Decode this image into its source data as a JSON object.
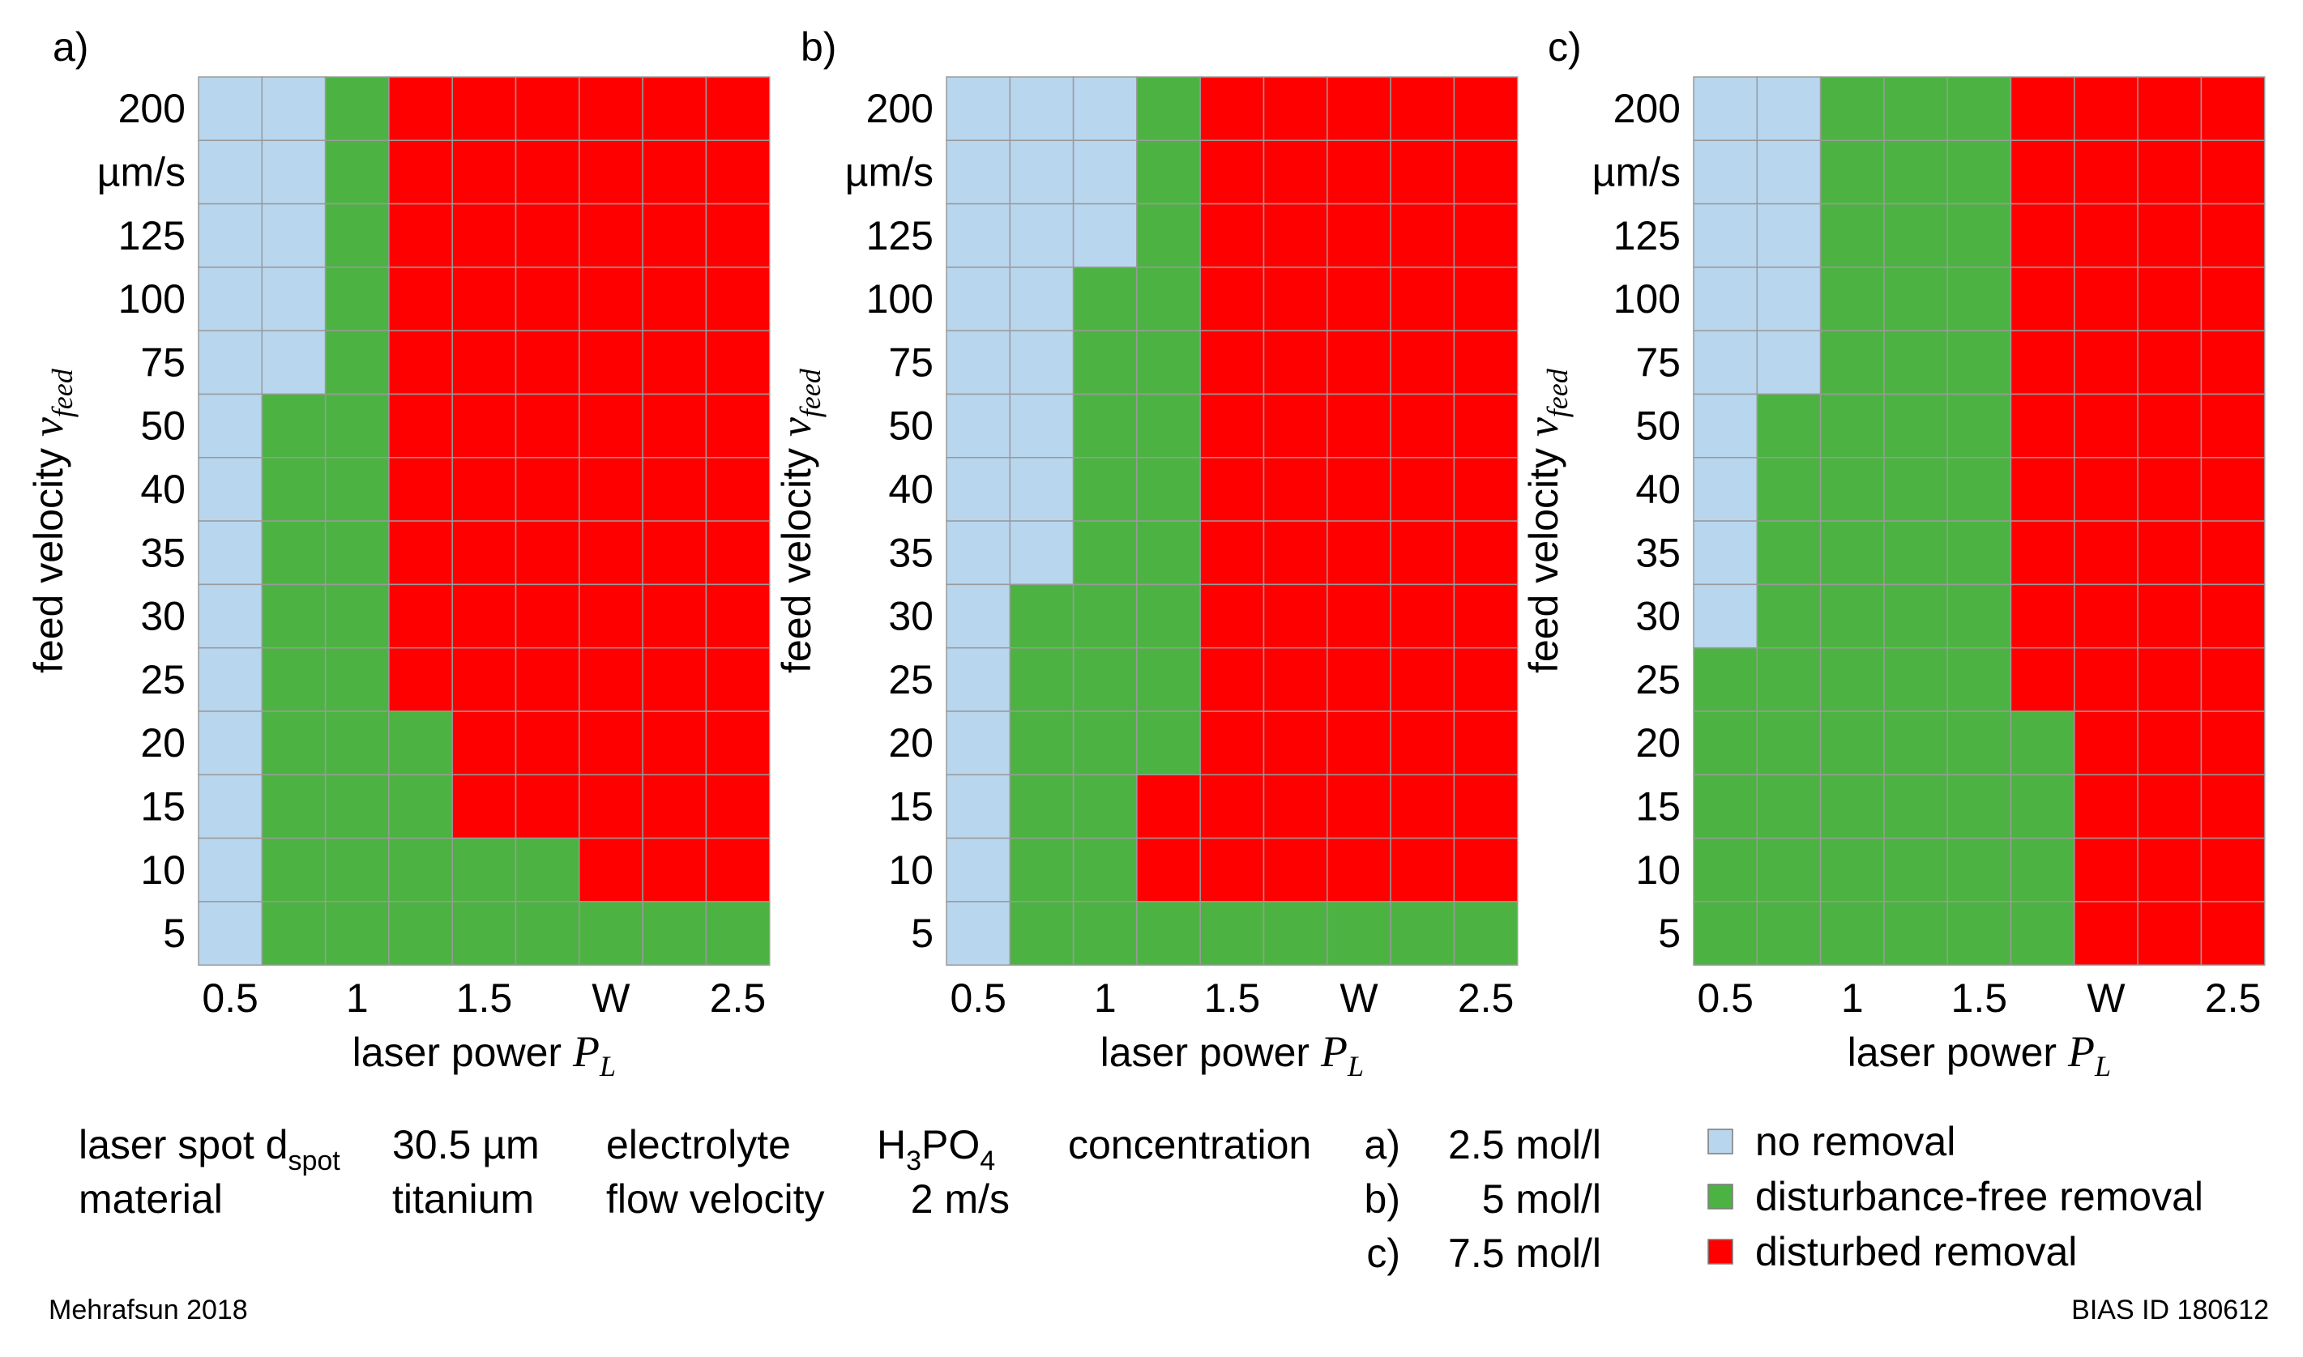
{
  "chart_data": [
    {
      "type": "heatmap",
      "panel_label": "a)",
      "xlabel": "laser power",
      "xlabel_symbol": "P",
      "xlabel_sub": "L",
      "ylabel": "feed velocity",
      "ylabel_symbol": "v",
      "ylabel_sub": "feed",
      "x_tick_labels": [
        "0.5",
        "1",
        "1.5",
        "W",
        "2.5"
      ],
      "y_tick_labels": [
        "200",
        "µm/s",
        "125",
        "100",
        "75",
        "50",
        "40",
        "35",
        "30",
        "25",
        "20",
        "15",
        "10",
        "5"
      ],
      "grid": [
        [
          "N",
          "N",
          "F",
          "D",
          "D",
          "D",
          "D",
          "D",
          "D"
        ],
        [
          "N",
          "N",
          "F",
          "D",
          "D",
          "D",
          "D",
          "D",
          "D"
        ],
        [
          "N",
          "N",
          "F",
          "D",
          "D",
          "D",
          "D",
          "D",
          "D"
        ],
        [
          "N",
          "N",
          "F",
          "D",
          "D",
          "D",
          "D",
          "D",
          "D"
        ],
        [
          "N",
          "N",
          "F",
          "D",
          "D",
          "D",
          "D",
          "D",
          "D"
        ],
        [
          "N",
          "F",
          "F",
          "D",
          "D",
          "D",
          "D",
          "D",
          "D"
        ],
        [
          "N",
          "F",
          "F",
          "D",
          "D",
          "D",
          "D",
          "D",
          "D"
        ],
        [
          "N",
          "F",
          "F",
          "D",
          "D",
          "D",
          "D",
          "D",
          "D"
        ],
        [
          "N",
          "F",
          "F",
          "D",
          "D",
          "D",
          "D",
          "D",
          "D"
        ],
        [
          "N",
          "F",
          "F",
          "D",
          "D",
          "D",
          "D",
          "D",
          "D"
        ],
        [
          "N",
          "F",
          "F",
          "F",
          "D",
          "D",
          "D",
          "D",
          "D"
        ],
        [
          "N",
          "F",
          "F",
          "F",
          "D",
          "D",
          "D",
          "D",
          "D"
        ],
        [
          "N",
          "F",
          "F",
          "F",
          "F",
          "F",
          "D",
          "D",
          "D"
        ],
        [
          "N",
          "F",
          "F",
          "F",
          "F",
          "F",
          "F",
          "F",
          "F"
        ]
      ]
    },
    {
      "type": "heatmap",
      "panel_label": "b)",
      "xlabel": "laser power",
      "xlabel_symbol": "P",
      "xlabel_sub": "L",
      "ylabel": "feed velocity",
      "ylabel_symbol": "v",
      "ylabel_sub": "feed",
      "x_tick_labels": [
        "0.5",
        "1",
        "1.5",
        "W",
        "2.5"
      ],
      "y_tick_labels": [
        "200",
        "µm/s",
        "125",
        "100",
        "75",
        "50",
        "40",
        "35",
        "30",
        "25",
        "20",
        "15",
        "10",
        "5"
      ],
      "grid": [
        [
          "N",
          "N",
          "N",
          "F",
          "D",
          "D",
          "D",
          "D",
          "D"
        ],
        [
          "N",
          "N",
          "N",
          "F",
          "D",
          "D",
          "D",
          "D",
          "D"
        ],
        [
          "N",
          "N",
          "N",
          "F",
          "D",
          "D",
          "D",
          "D",
          "D"
        ],
        [
          "N",
          "N",
          "F",
          "F",
          "D",
          "D",
          "D",
          "D",
          "D"
        ],
        [
          "N",
          "N",
          "F",
          "F",
          "D",
          "D",
          "D",
          "D",
          "D"
        ],
        [
          "N",
          "N",
          "F",
          "F",
          "D",
          "D",
          "D",
          "D",
          "D"
        ],
        [
          "N",
          "N",
          "F",
          "F",
          "D",
          "D",
          "D",
          "D",
          "D"
        ],
        [
          "N",
          "N",
          "F",
          "F",
          "D",
          "D",
          "D",
          "D",
          "D"
        ],
        [
          "N",
          "F",
          "F",
          "F",
          "D",
          "D",
          "D",
          "D",
          "D"
        ],
        [
          "N",
          "F",
          "F",
          "F",
          "D",
          "D",
          "D",
          "D",
          "D"
        ],
        [
          "N",
          "F",
          "F",
          "F",
          "D",
          "D",
          "D",
          "D",
          "D"
        ],
        [
          "N",
          "F",
          "F",
          "D",
          "D",
          "D",
          "D",
          "D",
          "D"
        ],
        [
          "N",
          "F",
          "F",
          "D",
          "D",
          "D",
          "D",
          "D",
          "D"
        ],
        [
          "N",
          "F",
          "F",
          "F",
          "F",
          "F",
          "F",
          "F",
          "F"
        ]
      ]
    },
    {
      "type": "heatmap",
      "panel_label": "c)",
      "xlabel": "laser power",
      "xlabel_symbol": "P",
      "xlabel_sub": "L",
      "ylabel": "feed velocity",
      "ylabel_symbol": "v",
      "ylabel_sub": "feed",
      "x_tick_labels": [
        "0.5",
        "1",
        "1.5",
        "W",
        "2.5"
      ],
      "y_tick_labels": [
        "200",
        "µm/s",
        "125",
        "100",
        "75",
        "50",
        "40",
        "35",
        "30",
        "25",
        "20",
        "15",
        "10",
        "5"
      ],
      "grid": [
        [
          "N",
          "N",
          "F",
          "F",
          "F",
          "D",
          "D",
          "D",
          "D"
        ],
        [
          "N",
          "N",
          "F",
          "F",
          "F",
          "D",
          "D",
          "D",
          "D"
        ],
        [
          "N",
          "N",
          "F",
          "F",
          "F",
          "D",
          "D",
          "D",
          "D"
        ],
        [
          "N",
          "N",
          "F",
          "F",
          "F",
          "D",
          "D",
          "D",
          "D"
        ],
        [
          "N",
          "N",
          "F",
          "F",
          "F",
          "D",
          "D",
          "D",
          "D"
        ],
        [
          "N",
          "F",
          "F",
          "F",
          "F",
          "D",
          "D",
          "D",
          "D"
        ],
        [
          "N",
          "F",
          "F",
          "F",
          "F",
          "D",
          "D",
          "D",
          "D"
        ],
        [
          "N",
          "F",
          "F",
          "F",
          "F",
          "D",
          "D",
          "D",
          "D"
        ],
        [
          "N",
          "F",
          "F",
          "F",
          "F",
          "D",
          "D",
          "D",
          "D"
        ],
        [
          "F",
          "F",
          "F",
          "F",
          "F",
          "D",
          "D",
          "D",
          "D"
        ],
        [
          "F",
          "F",
          "F",
          "F",
          "F",
          "F",
          "D",
          "D",
          "D"
        ],
        [
          "F",
          "F",
          "F",
          "F",
          "F",
          "F",
          "D",
          "D",
          "D"
        ],
        [
          "F",
          "F",
          "F",
          "F",
          "F",
          "F",
          "D",
          "D",
          "D"
        ],
        [
          "F",
          "F",
          "F",
          "F",
          "F",
          "F",
          "D",
          "D",
          "D"
        ]
      ]
    }
  ],
  "legend": [
    {
      "key": "N",
      "label": "no removal",
      "color": "#b8d6ee"
    },
    {
      "key": "F",
      "label": "disturbance-free removal",
      "color": "#4cb342"
    },
    {
      "key": "D",
      "label": "disturbed removal",
      "color": "#ff0000"
    }
  ],
  "parameters": {
    "spot_label": "laser spot d",
    "spot_sub": "spot",
    "spot_value": "30.5 µm",
    "material_label": "material",
    "material_value": "titanium",
    "electrolyte_label": "electrolyte",
    "electrolyte_value": "H",
    "electrolyte_sub1": "3",
    "electrolyte_mid": "PO",
    "electrolyte_sub2": "4",
    "flow_label": "flow velocity",
    "flow_value": "2 m/s",
    "concentration_label": "concentration",
    "concentrations": [
      {
        "panel": "a)",
        "value": "2.5 mol/l"
      },
      {
        "panel": "b)",
        "value": "5 mol/l"
      },
      {
        "panel": "c)",
        "value": "7.5 mol/l"
      }
    ]
  },
  "footer": {
    "left": "Mehrafsun 2018",
    "right": "BIAS ID 180612"
  }
}
